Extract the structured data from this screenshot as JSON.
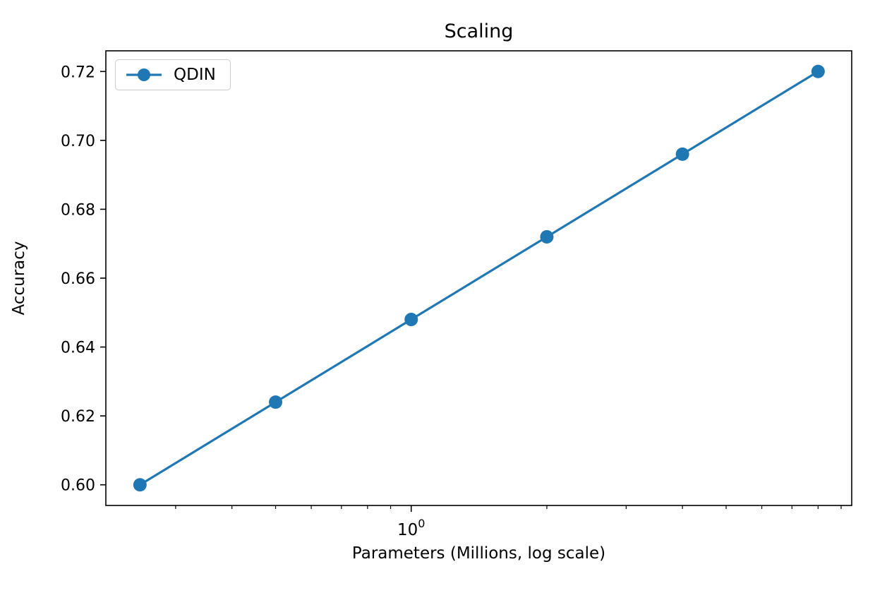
{
  "chart_data": {
    "type": "line",
    "title": "Scaling",
    "xlabel": "Parameters (Millions, log scale)",
    "ylabel": "Accuracy",
    "x_scale": "log",
    "grid": false,
    "legend_position": "upper left",
    "xlim": [
      0.21,
      9.5
    ],
    "ylim": [
      0.594,
      0.726
    ],
    "y_ticks": [
      0.6,
      0.62,
      0.64,
      0.66,
      0.68,
      0.7,
      0.72
    ],
    "x_major_ticks": [
      1
    ],
    "x_major_tick_labels": [
      "10^0"
    ],
    "series": [
      {
        "name": "QDIN",
        "color": "#1f77b4",
        "marker": "circle",
        "x": [
          0.25,
          0.5,
          1,
          2,
          4,
          8
        ],
        "y": [
          0.6,
          0.624,
          0.648,
          0.672,
          0.696,
          0.72
        ]
      }
    ]
  }
}
